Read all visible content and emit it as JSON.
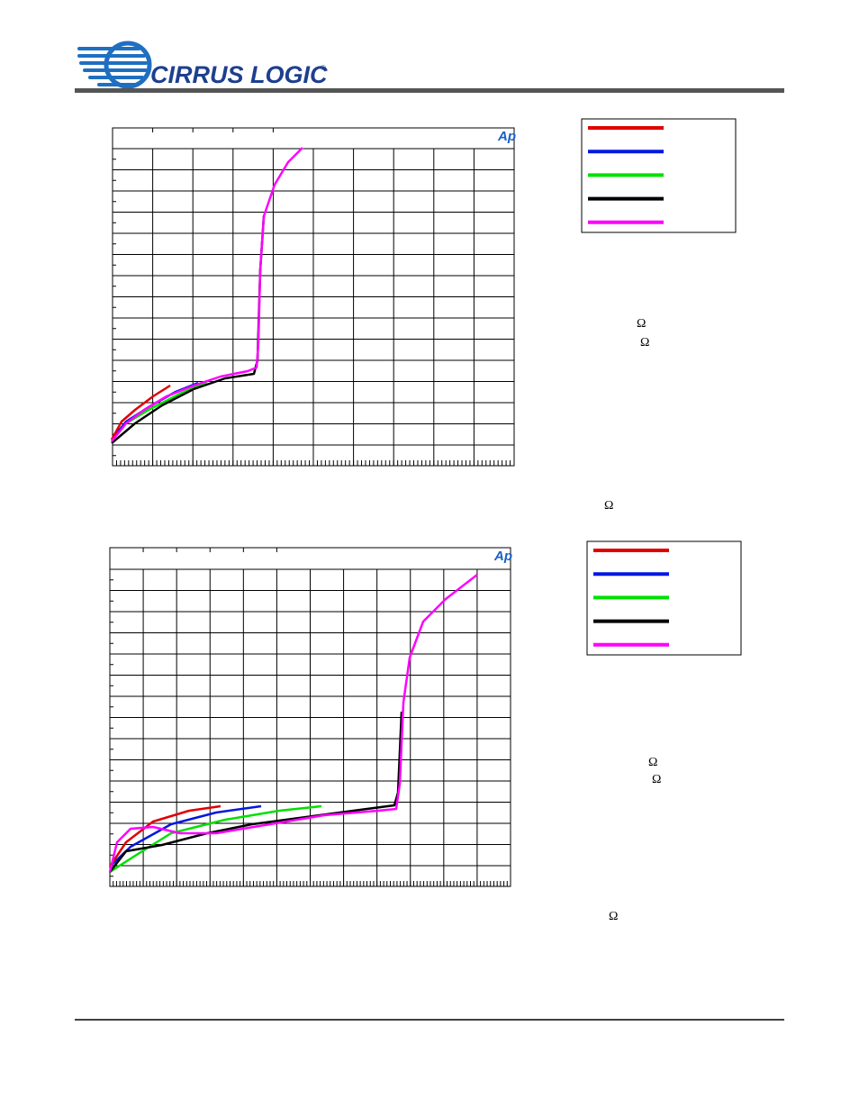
{
  "header": {
    "logo": "CIRRUS LOGIC",
    "registered": "®"
  },
  "figures": [
    {
      "watermark": "Ap",
      "notes": [
        "Ω",
        "Ω",
        "Ω"
      ]
    },
    {
      "watermark": "Ap",
      "notes": [
        "Ω",
        "Ω",
        "Ω"
      ]
    }
  ]
}
